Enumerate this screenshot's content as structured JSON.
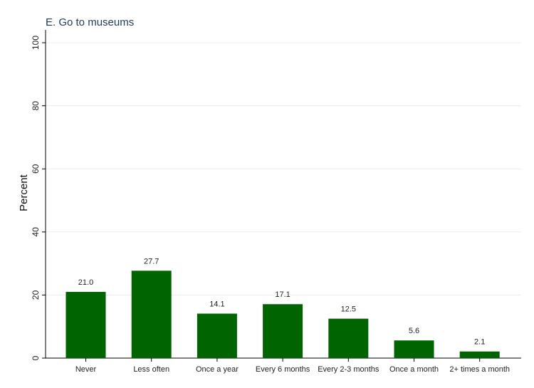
{
  "chart_data": {
    "type": "bar",
    "title": "E. Go to museums",
    "xlabel": "",
    "ylabel": "Percent",
    "ylim": [
      0,
      100
    ],
    "yticks": [
      0,
      20,
      40,
      60,
      80,
      100
    ],
    "grid": true,
    "bar_color": "#006400",
    "categories": [
      "Never",
      "Less often",
      "Once a year",
      "Every 6 months",
      "Every 2-3 months",
      "Once a month",
      "2+ times a month"
    ],
    "values": [
      21.0,
      27.7,
      14.1,
      17.1,
      12.5,
      5.6,
      2.1
    ],
    "value_labels": [
      "21.0",
      "27.7",
      "14.1",
      "17.1",
      "12.5",
      "5.6",
      "2.1"
    ]
  }
}
